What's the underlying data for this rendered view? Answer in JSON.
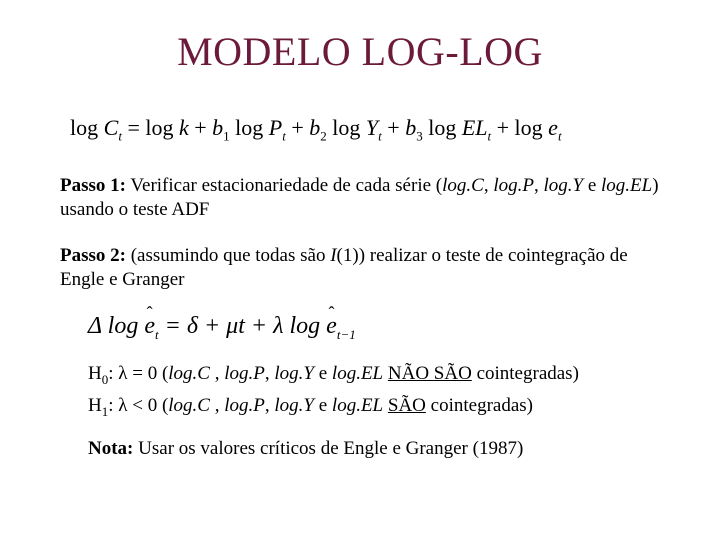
{
  "title": "MODELO LOG-LOG",
  "eq1_text": "log Cₜ = log k + b₁ log Pₜ + b₂ log Yₜ + b₃ log ELₜ + log eₜ",
  "passo1": {
    "label": "Passo 1:",
    "text_a": " Verificar estacionariedade de cada série (",
    "v1": "log.C",
    "c1": ", ",
    "v2": "log.P",
    "c2": ", ",
    "v3": "log.Y",
    "c3": " e ",
    "v4": "log.EL",
    "text_b": ") usando o teste ADF"
  },
  "passo2": {
    "label": "Passo 2:",
    "text_a": " (assumindo que todas são ",
    "ivar": "I",
    "text_b": "(1)) realizar o teste de cointegração de Engle e Granger"
  },
  "h0": {
    "label": "H",
    "sub": "0",
    "pre": ": λ = 0 (",
    "v1": "log.C",
    "c1": " , ",
    "v2": "log.P",
    "c2": ", ",
    "v3": "log.Y",
    "c3": " e ",
    "v4": "log.EL",
    "gap": " ",
    "mid": "NÃO SÃO",
    "post": " cointegradas)"
  },
  "h1": {
    "label": "H",
    "sub": "1",
    "pre": ": λ < 0 (",
    "v1": "log.C",
    "c1": " , ",
    "v2": "log.P",
    "c2": ", ",
    "v3": "log.Y",
    "c3": " e ",
    "v4": "log.EL",
    "gap": " ",
    "mid": "SÃO",
    "post": " cointegradas)"
  },
  "nota": {
    "label": "Nota:",
    "text": " Usar os valores críticos de Engle e Granger (1987)"
  }
}
